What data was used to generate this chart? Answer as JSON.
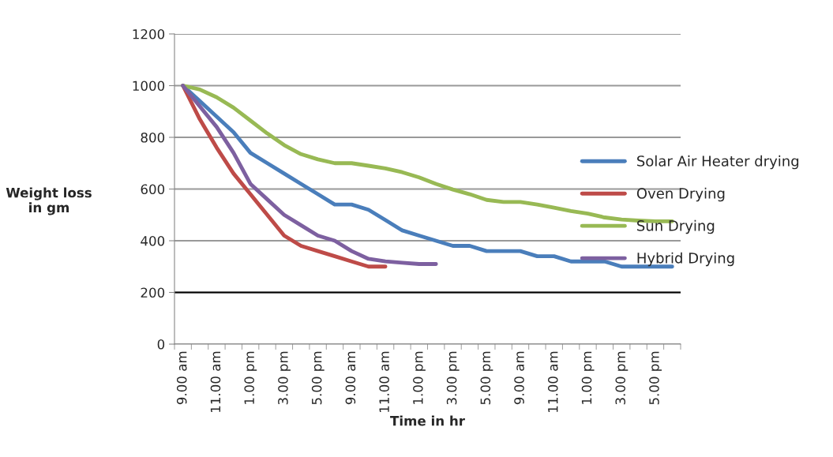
{
  "chart_data": {
    "type": "line",
    "xlabel": "Time in hr",
    "ylabel": "Weight loss in gm",
    "categories": [
      "9.00 am",
      null,
      "11.00 am",
      null,
      "1.00 pm",
      null,
      "3.00 pm",
      null,
      "5.00 pm",
      null,
      "9.00 am",
      null,
      "11.00 am",
      null,
      "1.00 pm",
      null,
      "3.00 pm",
      null,
      "5.00 pm",
      null,
      "9.00 am",
      null,
      "11.00 am",
      null,
      "1.00 pm",
      null,
      "3.00 pm",
      null,
      "5.00 pm",
      null
    ],
    "series": [
      {
        "name": "Solar Air Heater drying",
        "color": "#4a7ebb",
        "values": [
          1000,
          940,
          880,
          820,
          740,
          700,
          660,
          620,
          580,
          540,
          540,
          520,
          480,
          440,
          420,
          400,
          380,
          380,
          360,
          360,
          360,
          340,
          340,
          320,
          320,
          320,
          300,
          300,
          300,
          300
        ]
      },
      {
        "name": "Oven Drying",
        "color": "#be4b48",
        "values": [
          1000,
          870,
          760,
          660,
          580,
          500,
          420,
          380,
          360,
          340,
          320,
          300,
          300,
          null,
          null,
          null,
          null,
          null,
          null,
          null,
          null,
          null,
          null,
          null,
          null,
          null,
          null,
          null,
          null,
          null
        ]
      },
      {
        "name": "Sun Drying",
        "color": "#98b954",
        "values": [
          1000,
          985,
          955,
          915,
          865,
          815,
          770,
          735,
          715,
          700,
          700,
          690,
          680,
          665,
          645,
          620,
          598,
          580,
          558,
          550,
          550,
          540,
          528,
          515,
          505,
          490,
          482,
          478,
          475,
          475
        ]
      },
      {
        "name": "Hybrid Drying",
        "color": "#7d60a0",
        "values": [
          1000,
          920,
          840,
          740,
          620,
          560,
          500,
          460,
          420,
          400,
          360,
          330,
          320,
          315,
          310,
          310,
          null,
          null,
          null,
          null,
          null,
          null,
          null,
          null,
          null,
          null,
          null,
          null,
          null,
          null
        ]
      }
    ],
    "ylim": [
      0,
      1200
    ],
    "yticks": [
      0,
      200,
      400,
      600,
      800,
      1000,
      1200
    ],
    "grid": "y",
    "legend": "right",
    "marker": "none",
    "line_style": "solid",
    "ref_lines": [
      {
        "axis": "y",
        "value": 200,
        "color": "#000000"
      }
    ]
  }
}
